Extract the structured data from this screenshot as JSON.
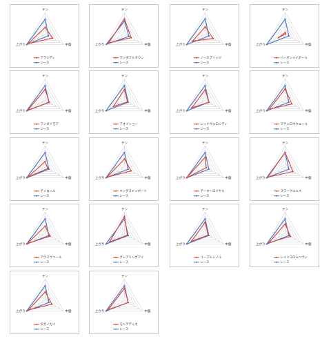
{
  "axes": [
    "テン",
    "中盤",
    "上がり"
  ],
  "race_label": "レース",
  "colors": {
    "horse": "#d9423a",
    "race": "#4472c4",
    "grid": "#c9c9c9",
    "frame": "#c8c8c8"
  },
  "chart_data": [
    {
      "type": "radar",
      "categories": [
        "テン",
        "中盤",
        "上がり"
      ],
      "rlim": [
        0,
        5
      ],
      "series": [
        {
          "name": "アラジディ",
          "values": [
            1.5,
            2.0,
            4.6
          ]
        },
        {
          "name": "レース",
          "values": [
            3.4,
            0.9,
            5.0
          ]
        }
      ]
    },
    {
      "type": "radar",
      "categories": [
        "テン",
        "中盤",
        "上がり"
      ],
      "rlim": [
        0,
        5
      ],
      "series": [
        {
          "name": "ワンダフルタウン",
          "values": [
            3.5,
            1.8,
            4.3
          ]
        },
        {
          "name": "レース",
          "values": [
            3.0,
            1.2,
            4.9
          ]
        }
      ]
    },
    {
      "type": "radar",
      "categories": [
        "テン",
        "中盤",
        "上がり"
      ],
      "rlim": [
        0,
        5
      ],
      "series": [
        {
          "name": "ノースブリッジ",
          "values": [
            1.6,
            2.2,
            3.4
          ]
        },
        {
          "name": "レース",
          "values": [
            3.5,
            1.0,
            5.0
          ]
        }
      ]
    },
    {
      "type": "radar",
      "categories": [
        "テン",
        "中盤",
        "上がり"
      ],
      "rlim": [
        0,
        5
      ],
      "series": [
        {
          "name": "バーボンハイボール",
          "values": [
            0.3,
            0.1,
            1.8
          ]
        },
        {
          "name": "レース",
          "values": [
            3.4,
            1.0,
            5.0
          ]
        }
      ]
    },
    {
      "type": "radar",
      "categories": [
        "テン",
        "中盤",
        "上がり"
      ],
      "rlim": [
        0,
        5
      ],
      "series": [
        {
          "name": "ワンダイモア",
          "values": [
            2.5,
            1.1,
            4.7
          ]
        },
        {
          "name": "レース",
          "values": [
            3.4,
            1.0,
            5.0
          ]
        }
      ]
    },
    {
      "type": "radar",
      "categories": [
        "テン",
        "中盤",
        "上がり"
      ],
      "rlim": [
        0,
        5
      ],
      "series": [
        {
          "name": "アオイショー",
          "values": [
            2.5,
            0.8,
            3.0
          ]
        },
        {
          "name": "レース",
          "values": [
            3.4,
            1.0,
            5.0
          ]
        }
      ]
    },
    {
      "type": "radar",
      "categories": [
        "テン",
        "中盤",
        "上がり"
      ],
      "rlim": [
        0,
        5
      ],
      "series": [
        {
          "name": "レッドヴェロシティ",
          "values": [
            2.4,
            1.0,
            3.6
          ]
        },
        {
          "name": "レース",
          "values": [
            3.4,
            1.0,
            5.0
          ]
        }
      ]
    },
    {
      "type": "radar",
      "categories": [
        "テン",
        "中盤",
        "上がり"
      ],
      "rlim": [
        0,
        5
      ],
      "series": [
        {
          "name": "マテンロウウェール",
          "values": [
            2.6,
            1.8,
            4.3
          ]
        },
        {
          "name": "レース",
          "values": [
            3.4,
            1.0,
            5.0
          ]
        }
      ]
    },
    {
      "type": "radar",
      "categories": [
        "テン",
        "中盤",
        "上がり"
      ],
      "rlim": [
        0,
        5
      ],
      "series": [
        {
          "name": "テンカハル",
          "values": [
            1.3,
            0.7,
            4.7
          ]
        },
        {
          "name": "レース",
          "values": [
            3.4,
            1.0,
            5.0
          ]
        }
      ]
    },
    {
      "type": "radar",
      "categories": [
        "テン",
        "中盤",
        "上がり"
      ],
      "rlim": [
        0,
        5
      ],
      "series": [
        {
          "name": "キングストンボーイ",
          "values": [
            1.9,
            1.8,
            4.7
          ]
        },
        {
          "name": "レース",
          "values": [
            3.4,
            1.0,
            5.0
          ]
        }
      ]
    },
    {
      "type": "radar",
      "categories": [
        "テン",
        "中盤",
        "上がり"
      ],
      "rlim": [
        0,
        5
      ],
      "series": [
        {
          "name": "テーオーロイヤル",
          "values": [
            2.3,
            0.3,
            5.0
          ]
        },
        {
          "name": "レース",
          "values": [
            3.4,
            1.0,
            5.0
          ]
        }
      ]
    },
    {
      "type": "radar",
      "categories": [
        "テン",
        "中盤",
        "上がり"
      ],
      "rlim": [
        0,
        5
      ],
      "series": [
        {
          "name": "スワーヴエルメ",
          "values": [
            3.4,
            2.1,
            4.7
          ]
        },
        {
          "name": "レース",
          "values": [
            3.4,
            1.0,
            5.0
          ]
        }
      ]
    },
    {
      "type": "radar",
      "categories": [
        "テン",
        "中盤",
        "上がり"
      ],
      "rlim": [
        0,
        5
      ],
      "series": [
        {
          "name": "アウスヴァール",
          "values": [
            1.7,
            1.3,
            4.8
          ]
        },
        {
          "name": "レース",
          "values": [
            3.4,
            1.0,
            5.0
          ]
        }
      ]
    },
    {
      "type": "radar",
      "categories": [
        "テン",
        "中盤",
        "上がり"
      ],
      "rlim": [
        0,
        5
      ],
      "series": [
        {
          "name": "グレアリングアイ",
          "values": [
            4.0,
            0.8,
            4.0
          ]
        },
        {
          "name": "レース",
          "values": [
            3.4,
            1.0,
            5.0
          ]
        }
      ]
    },
    {
      "type": "radar",
      "categories": [
        "テン",
        "中盤",
        "上がり"
      ],
      "rlim": [
        0,
        5
      ],
      "series": [
        {
          "name": "リーブルミノル",
          "values": [
            2.6,
            0.8,
            3.7
          ]
        },
        {
          "name": "レース",
          "values": [
            3.4,
            1.0,
            5.0
          ]
        }
      ]
    },
    {
      "type": "radar",
      "categories": [
        "テン",
        "中盤",
        "上がり"
      ],
      "rlim": [
        0,
        5
      ],
      "series": [
        {
          "name": "レインフロムヘヴン",
          "values": [
            2.2,
            1.4,
            4.4
          ]
        },
        {
          "name": "レース",
          "values": [
            3.4,
            1.0,
            5.0
          ]
        }
      ]
    },
    {
      "type": "radar",
      "categories": [
        "テン",
        "中盤",
        "上がり"
      ],
      "rlim": [
        0,
        5
      ],
      "series": [
        {
          "name": "タガノカイ",
          "values": [
            2.0,
            1.8,
            4.5
          ]
        },
        {
          "name": "レース",
          "values": [
            3.4,
            1.0,
            5.0
          ]
        }
      ]
    },
    {
      "type": "radar",
      "categories": [
        "テン",
        "中盤",
        "上がり"
      ],
      "rlim": [
        0,
        5
      ],
      "series": [
        {
          "name": "モンテディオ",
          "values": [
            2.8,
            1.0,
            4.4
          ]
        },
        {
          "name": "レース",
          "values": [
            3.4,
            1.0,
            5.0
          ]
        }
      ]
    }
  ]
}
